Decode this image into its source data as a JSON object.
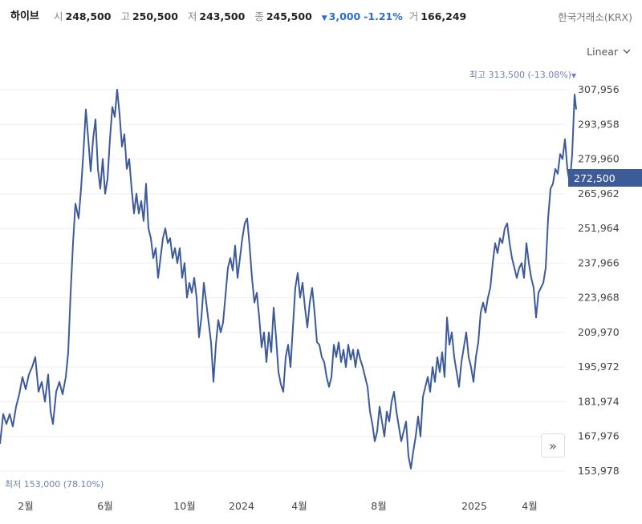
{
  "header": {
    "stock_name": "하이브",
    "open_label": "시",
    "open_value": "248,500",
    "high_label": "고",
    "high_value": "250,500",
    "low_label": "저",
    "low_value": "243,500",
    "close_label": "종",
    "close_value": "245,500",
    "change_arrow": "▼",
    "change_value": "3,000",
    "change_pct": "-1.21%",
    "volume_label": "거",
    "volume_value": "166,249",
    "exchange": "한국거래소(KRX)"
  },
  "scale_select": {
    "label": "Linear"
  },
  "scroll_button": {
    "icon": "double-chevron-right-icon",
    "glyph": "»"
  },
  "colors": {
    "line": "#3d5a99",
    "grid": "#eeeeee",
    "current_badge": "#3d5a99",
    "annotation": "#6b83b5",
    "down": "#2b6bd6"
  },
  "chart_data": {
    "type": "line",
    "y_ticks": [
      "307,956",
      "293,958",
      "279,960",
      "265,962",
      "251,964",
      "237,966",
      "223,968",
      "209,970",
      "195,972",
      "181,974",
      "167,976",
      "153,978"
    ],
    "x_ticks": [
      "2월",
      "6월",
      "10월",
      "2024",
      "4월",
      "8월",
      "2025",
      "4월"
    ],
    "current_price_label": "272,500",
    "max_annotation": {
      "label": "최고 313,500 (-13.08%)",
      "arrow": "▼"
    },
    "min_annotation": {
      "label": "최저 153,000 (78.10%)"
    },
    "ylim": [
      153978,
      307956
    ],
    "series": [
      {
        "points": [
          [
            0,
            165000
          ],
          [
            4,
            177000
          ],
          [
            8,
            173000
          ],
          [
            12,
            177000
          ],
          [
            16,
            172000
          ],
          [
            20,
            180000
          ],
          [
            24,
            185000
          ],
          [
            28,
            192000
          ],
          [
            32,
            187000
          ],
          [
            36,
            193000
          ],
          [
            40,
            196000
          ],
          [
            44,
            200000
          ],
          [
            48,
            186000
          ],
          [
            52,
            190000
          ],
          [
            56,
            182000
          ],
          [
            60,
            193000
          ],
          [
            63,
            178000
          ],
          [
            66,
            173000
          ],
          [
            70,
            186000
          ],
          [
            74,
            190000
          ],
          [
            78,
            185000
          ],
          [
            82,
            192000
          ],
          [
            85,
            202000
          ],
          [
            88,
            226000
          ],
          [
            91,
            246000
          ],
          [
            94,
            262000
          ],
          [
            98,
            256000
          ],
          [
            101,
            268000
          ],
          [
            104,
            283000
          ],
          [
            107,
            300000
          ],
          [
            110,
            288000
          ],
          [
            113,
            275000
          ],
          [
            116,
            288000
          ],
          [
            119,
            296000
          ],
          [
            122,
            276000
          ],
          [
            125,
            268000
          ],
          [
            128,
            280000
          ],
          [
            131,
            266000
          ],
          [
            134,
            272000
          ],
          [
            137,
            288000
          ],
          [
            140,
            301000
          ],
          [
            143,
            297000
          ],
          [
            146,
            308000
          ],
          [
            149,
            298000
          ],
          [
            152,
            285000
          ],
          [
            155,
            290000
          ],
          [
            158,
            276000
          ],
          [
            161,
            280000
          ],
          [
            164,
            268000
          ],
          [
            167,
            258000
          ],
          [
            170,
            266000
          ],
          [
            173,
            258000
          ],
          [
            176,
            263000
          ],
          [
            179,
            255000
          ],
          [
            182,
            270000
          ],
          [
            185,
            252000
          ],
          [
            188,
            248000
          ],
          [
            191,
            240000
          ],
          [
            194,
            244000
          ],
          [
            197,
            232000
          ],
          [
            200,
            240000
          ],
          [
            203,
            248000
          ],
          [
            206,
            252000
          ],
          [
            209,
            246000
          ],
          [
            212,
            248000
          ],
          [
            215,
            240000
          ],
          [
            218,
            244000
          ],
          [
            221,
            238000
          ],
          [
            224,
            244000
          ],
          [
            227,
            232000
          ],
          [
            230,
            238000
          ],
          [
            233,
            224000
          ],
          [
            236,
            230000
          ],
          [
            239,
            226000
          ],
          [
            242,
            232000
          ],
          [
            245,
            224000
          ],
          [
            248,
            208000
          ],
          [
            251,
            216000
          ],
          [
            254,
            230000
          ],
          [
            257,
            222000
          ],
          [
            260,
            214000
          ],
          [
            263,
            206000
          ],
          [
            266,
            190000
          ],
          [
            269,
            205000
          ],
          [
            272,
            215000
          ],
          [
            275,
            210000
          ],
          [
            278,
            214000
          ],
          [
            281,
            225000
          ],
          [
            284,
            236000
          ],
          [
            287,
            240000
          ],
          [
            290,
            235000
          ],
          [
            293,
            245000
          ],
          [
            296,
            232000
          ],
          [
            299,
            240000
          ],
          [
            302,
            248000
          ],
          [
            305,
            254000
          ],
          [
            308,
            256000
          ],
          [
            311,
            245000
          ],
          [
            314,
            232000
          ],
          [
            317,
            222000
          ],
          [
            320,
            226000
          ],
          [
            323,
            216000
          ],
          [
            326,
            204000
          ],
          [
            329,
            210000
          ],
          [
            332,
            198000
          ],
          [
            335,
            210000
          ],
          [
            338,
            202000
          ],
          [
            341,
            220000
          ],
          [
            344,
            208000
          ],
          [
            347,
            194000
          ],
          [
            350,
            189000
          ],
          [
            353,
            186000
          ],
          [
            356,
            200000
          ],
          [
            359,
            205000
          ],
          [
            362,
            196000
          ],
          [
            365,
            212000
          ],
          [
            368,
            228000
          ],
          [
            371,
            234000
          ],
          [
            374,
            224000
          ],
          [
            377,
            230000
          ],
          [
            380,
            220000
          ],
          [
            383,
            212000
          ],
          [
            386,
            222000
          ],
          [
            389,
            228000
          ],
          [
            392,
            218000
          ],
          [
            395,
            206000
          ],
          [
            398,
            205000
          ],
          [
            401,
            200000
          ],
          [
            404,
            198000
          ],
          [
            407,
            192000
          ],
          [
            410,
            188000
          ],
          [
            413,
            192000
          ],
          [
            416,
            205000
          ],
          [
            419,
            200000
          ],
          [
            422,
            206000
          ],
          [
            425,
            198000
          ],
          [
            428,
            203000
          ],
          [
            431,
            196000
          ],
          [
            434,
            205000
          ],
          [
            437,
            199000
          ],
          [
            440,
            203000
          ],
          [
            443,
            196000
          ],
          [
            446,
            203000
          ],
          [
            449,
            199000
          ],
          [
            452,
            196000
          ],
          [
            455,
            192000
          ],
          [
            458,
            188000
          ],
          [
            461,
            178000
          ],
          [
            464,
            173000
          ],
          [
            467,
            166000
          ],
          [
            470,
            170000
          ],
          [
            473,
            180000
          ],
          [
            476,
            174000
          ],
          [
            479,
            168000
          ],
          [
            482,
            178000
          ],
          [
            485,
            174000
          ],
          [
            488,
            182000
          ],
          [
            491,
            186000
          ],
          [
            494,
            178000
          ],
          [
            497,
            172000
          ],
          [
            500,
            166000
          ],
          [
            503,
            170000
          ],
          [
            506,
            174000
          ],
          [
            509,
            160000
          ],
          [
            512,
            155000
          ],
          [
            515,
            162000
          ],
          [
            518,
            168000
          ],
          [
            521,
            176000
          ],
          [
            524,
            168000
          ],
          [
            527,
            184000
          ],
          [
            530,
            188000
          ],
          [
            533,
            192000
          ],
          [
            536,
            186000
          ],
          [
            539,
            196000
          ],
          [
            542,
            190000
          ],
          [
            545,
            200000
          ],
          [
            548,
            194000
          ],
          [
            551,
            202000
          ],
          [
            554,
            192000
          ],
          [
            557,
            216000
          ],
          [
            560,
            205000
          ],
          [
            563,
            210000
          ],
          [
            566,
            200000
          ],
          [
            569,
            194000
          ],
          [
            572,
            188000
          ],
          [
            575,
            198000
          ],
          [
            578,
            204000
          ],
          [
            581,
            210000
          ],
          [
            584,
            200000
          ],
          [
            587,
            196000
          ],
          [
            590,
            190000
          ],
          [
            593,
            200000
          ],
          [
            596,
            206000
          ],
          [
            599,
            218000
          ],
          [
            602,
            222000
          ],
          [
            605,
            218000
          ],
          [
            608,
            224000
          ],
          [
            611,
            228000
          ],
          [
            614,
            238000
          ],
          [
            617,
            246000
          ],
          [
            620,
            242000
          ],
          [
            623,
            248000
          ],
          [
            626,
            246000
          ],
          [
            629,
            252000
          ],
          [
            632,
            254000
          ],
          [
            635,
            246000
          ],
          [
            638,
            240000
          ],
          [
            641,
            236000
          ],
          [
            644,
            232000
          ],
          [
            647,
            236000
          ],
          [
            650,
            238000
          ],
          [
            653,
            232000
          ],
          [
            656,
            246000
          ],
          [
            659,
            238000
          ],
          [
            662,
            232000
          ],
          [
            665,
            228000
          ],
          [
            668,
            216000
          ],
          [
            671,
            226000
          ],
          [
            674,
            228000
          ],
          [
            677,
            230000
          ],
          [
            680,
            236000
          ],
          [
            683,
            256000
          ],
          [
            686,
            268000
          ],
          [
            689,
            270000
          ],
          [
            692,
            276000
          ],
          [
            695,
            274000
          ],
          [
            698,
            282000
          ],
          [
            701,
            280000
          ],
          [
            704,
            288000
          ],
          [
            707,
            276000
          ],
          [
            710,
            270000
          ],
          [
            713,
            282000
          ],
          [
            716,
            306000
          ],
          [
            718,
            300000
          ]
        ]
      }
    ]
  }
}
